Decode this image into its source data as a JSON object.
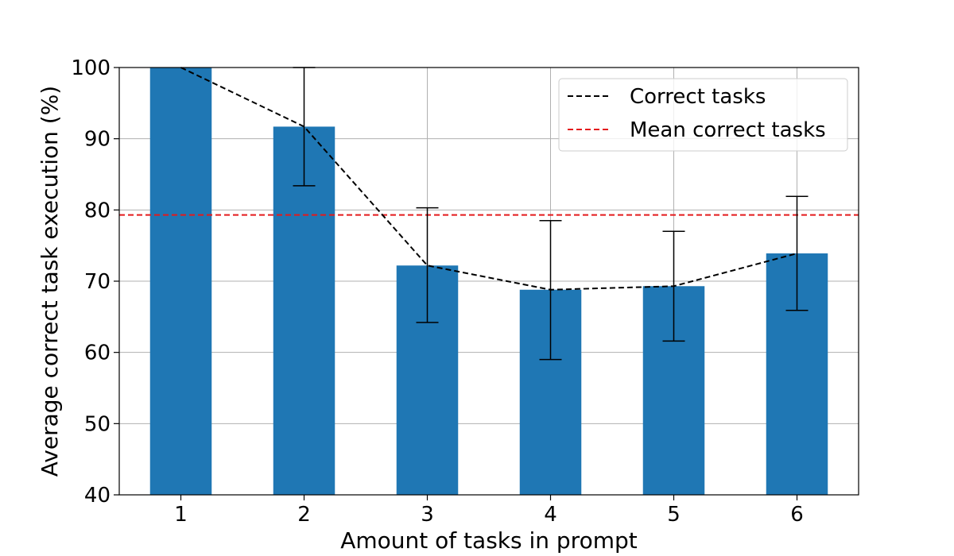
{
  "chart_data": {
    "type": "bar",
    "categories": [
      "1",
      "2",
      "3",
      "4",
      "5",
      "6"
    ],
    "values": [
      100.0,
      91.7,
      72.2,
      68.8,
      69.3,
      73.9
    ],
    "error_low": [
      100.0,
      83.4,
      64.2,
      59.0,
      61.6,
      65.9
    ],
    "error_high": [
      100.0,
      100.0,
      80.3,
      78.5,
      77.0,
      81.9
    ],
    "line_series": {
      "name": "Correct tasks",
      "values": [
        100.0,
        91.7,
        72.2,
        68.8,
        69.3,
        73.9
      ]
    },
    "mean_line": {
      "name": "Mean correct tasks",
      "value": 79.3
    },
    "xlabel": "Amount of tasks in prompt",
    "ylabel": "Average correct task execution (%)",
    "ylim": [
      40,
      100
    ],
    "yticks": [
      40,
      50,
      60,
      70,
      80,
      90,
      100
    ],
    "grid": true,
    "legend_position": "top-right",
    "colors": {
      "bar": "#1f77b4",
      "line": "#000000",
      "mean_line": "#e41a1c",
      "grid": "#b0b0b0",
      "error_bar": "#000000"
    }
  }
}
